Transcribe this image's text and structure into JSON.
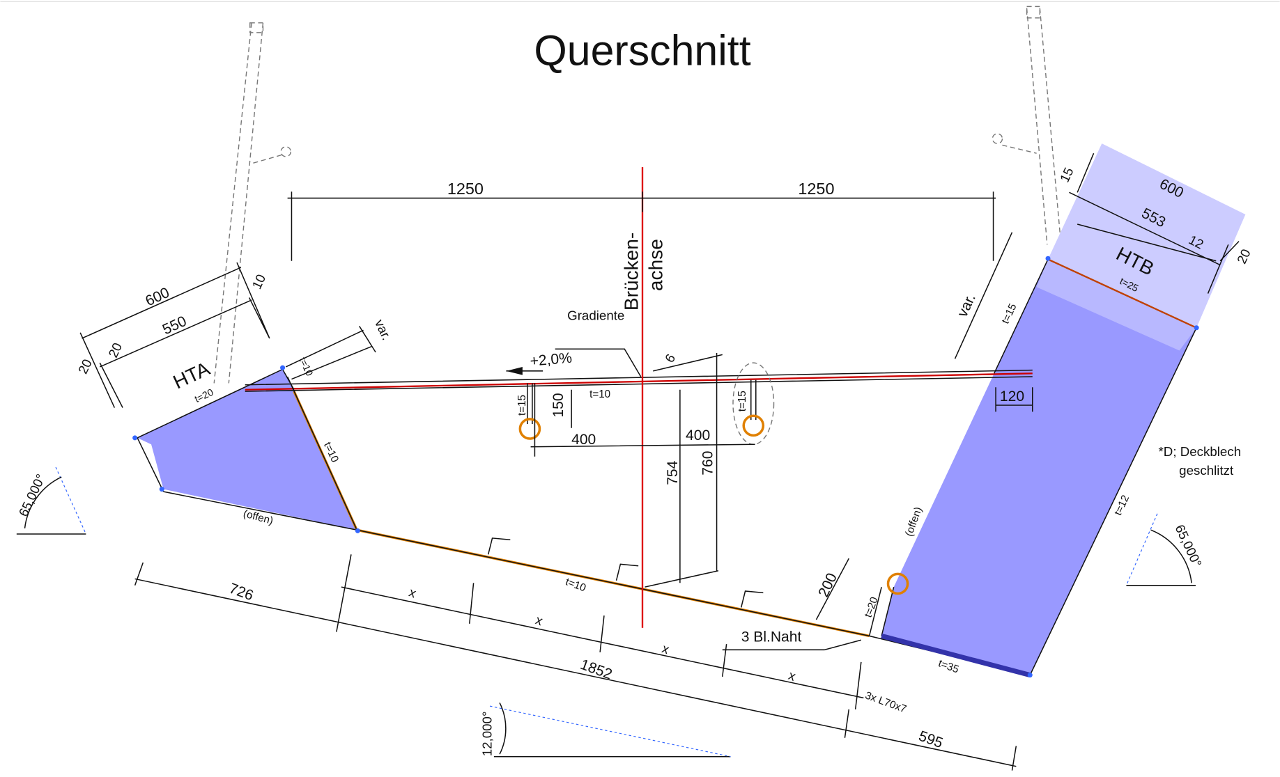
{
  "title": "Querschnitt",
  "labels": [
    "1250",
    "1250",
    "Brücken-",
    "achse",
    "Gradiente",
    "+2,0%",
    "6",
    "t=15",
    "150",
    "t=10",
    "400",
    "400",
    "754",
    "760",
    "t=15",
    "t=10",
    "600",
    "550",
    "20",
    "20",
    "10",
    "var.",
    "t=10",
    "HTA",
    "t=20",
    "(offen)",
    "65,000°",
    "726",
    "x",
    "x",
    "x",
    "x",
    "t=10",
    "1852",
    "595",
    "12,000°",
    "3 Bl.Naht",
    "3x L70x7",
    "200",
    "t=20",
    "(offen)",
    "var.",
    "t=15",
    "120",
    "15",
    "600",
    "553",
    "12",
    "20",
    "HTB",
    "t=25",
    "t=12",
    "t=35",
    "*D; Deckblech",
    "geschlitzt",
    "65,000°"
  ]
}
